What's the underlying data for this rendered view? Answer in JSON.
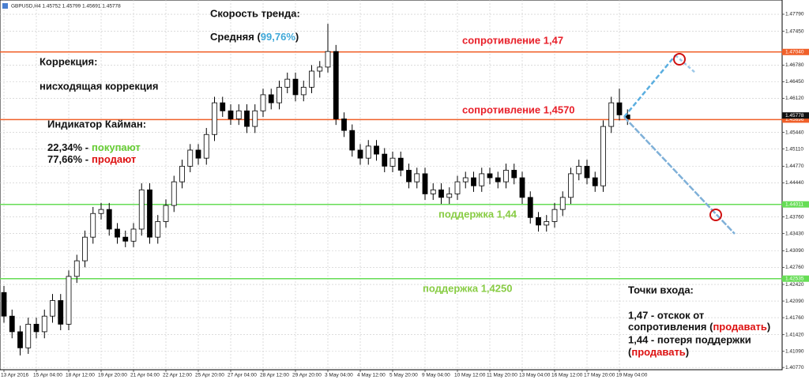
{
  "chart_data": {
    "type": "candlestick",
    "title": "GBPUSD,H4  1.45752 1.45799 1.45691 1.45778",
    "categories": [
      "13 Apr 2016",
      null,
      null,
      null,
      "15 Apr 04:00",
      null,
      null,
      null,
      "18 Apr 12:00",
      null,
      null,
      null,
      "19 Apr 20:00",
      null,
      null,
      null,
      "21 Apr 04:00",
      null,
      null,
      null,
      "22 Apr 12:00",
      null,
      null,
      null,
      "25 Apr 20:00",
      null,
      null,
      null,
      "27 Apr 04:00",
      null,
      null,
      null,
      "28 Apr 12:00",
      null,
      null,
      null,
      "29 Apr 20:00",
      null,
      null,
      null,
      "3 May 04:00",
      null,
      null,
      null,
      "4 May 12:00",
      null,
      null,
      null,
      "5 May 20:00",
      null,
      null,
      null,
      "9 May 04:00",
      null,
      null,
      null,
      "10 May 12:00",
      null,
      null,
      null,
      "11 May 20:00",
      null,
      null,
      null,
      "13 May 04:00",
      null,
      null,
      null,
      "16 May 12:00",
      null,
      null,
      null,
      "17 May 20:00",
      null,
      null,
      null,
      "19 May 04:00",
      null
    ],
    "open": [
      1.4226,
      1.4179,
      1.4148,
      1.4116,
      1.4163,
      1.4148,
      1.4179,
      1.421,
      1.4163,
      1.4258,
      1.4289,
      1.4336,
      1.4383,
      1.4391,
      1.4352,
      1.4336,
      1.4328,
      1.4352,
      1.443,
      1.4336,
      1.4367,
      1.4399,
      1.4446,
      1.4477,
      1.4509,
      1.4493,
      1.454,
      1.4603,
      1.4587,
      1.4571,
      1.4587,
      1.4556,
      1.4587,
      1.4619,
      1.4603,
      1.4634,
      1.465,
      1.4619,
      1.4634,
      1.4666,
      1.4674,
      1.4705,
      1.4571,
      1.4548,
      1.4509,
      1.4493,
      1.4517,
      1.4501,
      1.4477,
      1.4493,
      1.4469,
      1.4446,
      1.4462,
      1.4422,
      1.443,
      1.4415,
      1.4422,
      1.4446,
      1.4454,
      1.4438,
      1.4462,
      1.4454,
      1.4446,
      1.4469,
      1.4454,
      1.4415,
      1.4375,
      1.436,
      1.4367,
      1.4391,
      1.4415,
      1.4462,
      1.4477,
      1.4454,
      1.4438,
      1.4556,
      1.4603,
      1.4579
    ],
    "high": [
      1.4239,
      1.4192,
      1.416,
      1.4176,
      1.4176,
      1.4192,
      1.4223,
      1.4223,
      1.427,
      1.4301,
      1.4349,
      1.4396,
      1.4404,
      1.4404,
      1.4364,
      1.4349,
      1.4364,
      1.4443,
      1.4443,
      1.438,
      1.4411,
      1.4458,
      1.449,
      1.4521,
      1.4521,
      1.4553,
      1.4615,
      1.4615,
      1.46,
      1.46,
      1.46,
      1.46,
      1.4631,
      1.4631,
      1.4647,
      1.4663,
      1.4663,
      1.4647,
      1.4678,
      1.4686,
      1.476,
      1.4718,
      1.4584,
      1.456,
      1.4521,
      1.4529,
      1.4529,
      1.4513,
      1.4506,
      1.4506,
      1.4482,
      1.4474,
      1.4474,
      1.4443,
      1.4443,
      1.4435,
      1.4458,
      1.4466,
      1.4466,
      1.4474,
      1.4474,
      1.4466,
      1.4482,
      1.4482,
      1.4466,
      1.4427,
      1.4386,
      1.438,
      1.4404,
      1.4427,
      1.4474,
      1.449,
      1.449,
      1.4466,
      1.4568,
      1.4615,
      1.4631,
      1.459
    ],
    "low": [
      1.4166,
      1.4135,
      1.4101,
      1.4104,
      1.4135,
      1.4135,
      1.4166,
      1.4151,
      1.4151,
      1.4245,
      1.4276,
      1.4323,
      1.4371,
      1.4339,
      1.4323,
      1.4316,
      1.4316,
      1.4339,
      1.4323,
      1.4323,
      1.4355,
      1.4386,
      1.4433,
      1.4465,
      1.448,
      1.448,
      1.4527,
      1.4575,
      1.4559,
      1.4559,
      1.4543,
      1.4543,
      1.4575,
      1.459,
      1.459,
      1.4622,
      1.4606,
      1.4606,
      1.4622,
      1.4653,
      1.4663,
      1.4559,
      1.4535,
      1.4496,
      1.448,
      1.448,
      1.4488,
      1.4465,
      1.4465,
      1.4457,
      1.4433,
      1.4433,
      1.441,
      1.441,
      1.4402,
      1.4402,
      1.441,
      1.4433,
      1.4426,
      1.4426,
      1.4441,
      1.4433,
      1.4433,
      1.4441,
      1.4402,
      1.4363,
      1.4347,
      1.4347,
      1.4355,
      1.4378,
      1.4402,
      1.4449,
      1.4441,
      1.4426,
      1.4426,
      1.4543,
      1.4568,
      1.4559
    ],
    "close": [
      1.4179,
      1.4148,
      1.4116,
      1.4163,
      1.4148,
      1.4179,
      1.421,
      1.4163,
      1.4258,
      1.4289,
      1.4336,
      1.4383,
      1.4391,
      1.4352,
      1.4336,
      1.4328,
      1.4352,
      1.443,
      1.4336,
      1.4367,
      1.4399,
      1.4446,
      1.4477,
      1.4509,
      1.4493,
      1.454,
      1.4603,
      1.4587,
      1.4571,
      1.4587,
      1.4556,
      1.4587,
      1.4619,
      1.4603,
      1.4634,
      1.465,
      1.4619,
      1.4634,
      1.4666,
      1.4674,
      1.4705,
      1.4571,
      1.4548,
      1.4509,
      1.4493,
      1.4517,
      1.4501,
      1.4477,
      1.4493,
      1.4469,
      1.4446,
      1.4462,
      1.4422,
      1.443,
      1.4415,
      1.4422,
      1.4446,
      1.4454,
      1.4438,
      1.4462,
      1.4454,
      1.4446,
      1.4469,
      1.4454,
      1.4415,
      1.4375,
      1.436,
      1.4367,
      1.4391,
      1.4415,
      1.4462,
      1.4477,
      1.4454,
      1.4438,
      1.4556,
      1.4603,
      1.4579,
      1.4571
    ],
    "up_color": "#ffffff",
    "down_color": "#000000",
    "outline_color": "#000000",
    "ylim": [
      1.40725,
      1.48073
    ],
    "yticks": [
      {
        "value": 1.4779,
        "label": "1.47790"
      },
      {
        "value": 1.4745,
        "label": "1.47450"
      },
      {
        "value": 1.4678,
        "label": "1.46780"
      },
      {
        "value": 1.4645,
        "label": "1.46450"
      },
      {
        "value": 1.4612,
        "label": "1.46120"
      },
      {
        "value": 1.4544,
        "label": "1.45440"
      },
      {
        "value": 1.4511,
        "label": "1.45110"
      },
      {
        "value": 1.4477,
        "label": "1.44770"
      },
      {
        "value": 1.4444,
        "label": "1.44440"
      },
      {
        "value": 1.4376,
        "label": "1.43760"
      },
      {
        "value": 1.4343,
        "label": "1.43430"
      },
      {
        "value": 1.4309,
        "label": "1.43090"
      },
      {
        "value": 1.4276,
        "label": "1.42760"
      },
      {
        "value": 1.4242,
        "label": "1.42420"
      },
      {
        "value": 1.4209,
        "label": "1.42090"
      },
      {
        "value": 1.4176,
        "label": "1.41760"
      },
      {
        "value": 1.4142,
        "label": "1.41420"
      },
      {
        "value": 1.4109,
        "label": "1.41090"
      },
      {
        "value": 1.4077,
        "label": "1.40770"
      }
    ],
    "grid": true,
    "levels": [
      {
        "value": 1.4704,
        "label": "1.47040",
        "color": "#f0602a"
      },
      {
        "value": 1.45696,
        "label": "1.45696",
        "color": "#f0602a"
      },
      {
        "value": 1.44011,
        "label": "1.44011",
        "color": "#66dd55"
      },
      {
        "value": 1.42535,
        "label": "1.42535",
        "color": "#66dd55"
      }
    ],
    "current_price": {
      "value": 1.45778,
      "label": "1.45778"
    }
  },
  "annotations": {
    "trend_title": "Скорость тренда:",
    "trend_prefix": "Средняя (",
    "trend_value": "99,76%",
    "trend_suffix": ")",
    "correction_title": "Коррекция:",
    "correction_text": "нисходящая коррекция",
    "indicator_title": "Индикатор Кайман:",
    "buy_share": "22,34% -",
    "buy_label": "покупают",
    "sell_share": "77,66% -",
    "sell_label": "продают",
    "resistance_1": "сопротивление 1,47",
    "resistance_2": "сопротивление 1,4570",
    "support_1": "поддержка 1,44",
    "support_2": "поддержка 1,4250",
    "entry_title": "Точки входа:",
    "entry_1": "1,47 - отскок от",
    "entry_1b_prefix": "сопротивления (",
    "entry_1b_action": "продавать",
    "entry_1b_suffix": ")",
    "entry_2": "1,44 - потеря поддержки",
    "entry_2b_prefix": "(",
    "entry_2b_action": "продавать",
    "entry_2b_suffix": ")"
  }
}
